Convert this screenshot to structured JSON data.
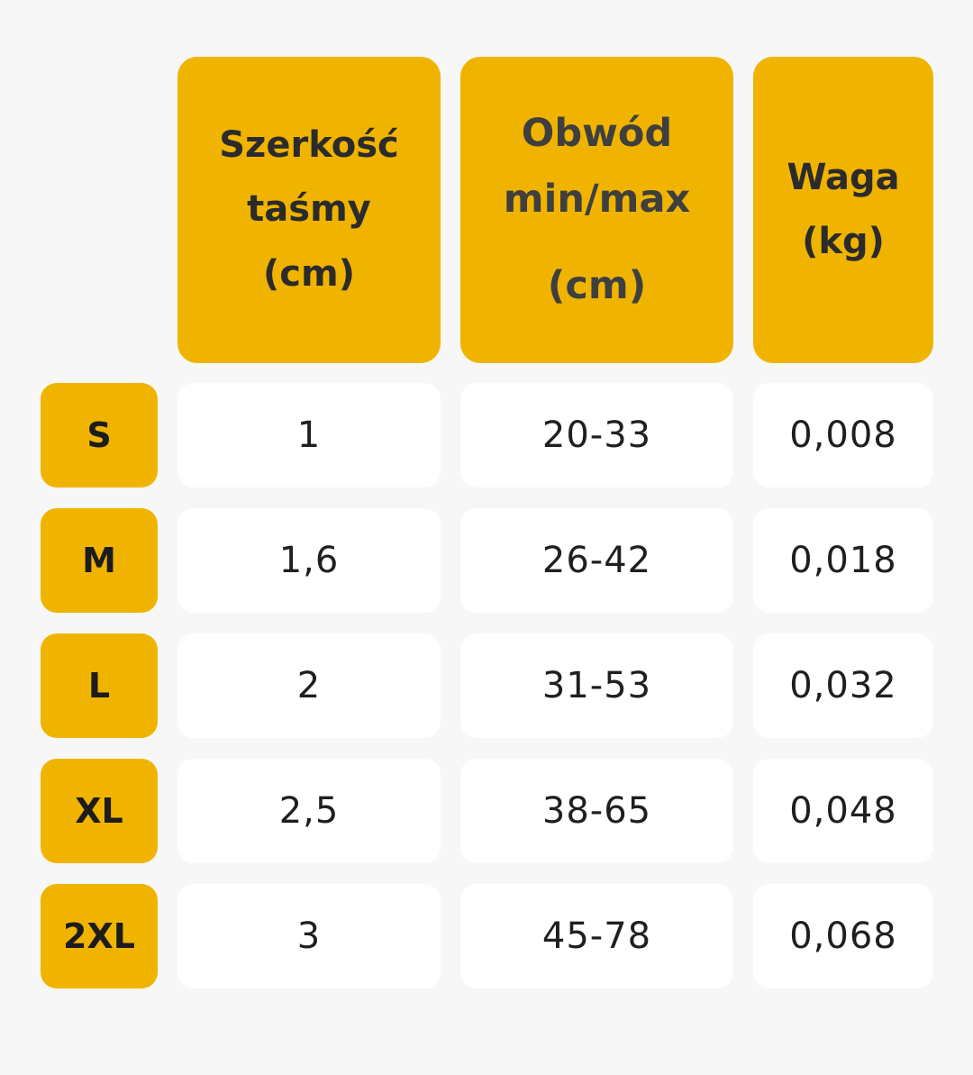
{
  "colors": {
    "background": "#f7f7f7",
    "header_fill": "#f0b400",
    "value_fill": "#ffffff",
    "text": "#1f1f1f"
  },
  "headers": {
    "width": [
      "Szerkość",
      "taśmy",
      "(cm)"
    ],
    "circumference": [
      "Obwód",
      "min/max",
      "(cm)"
    ],
    "weight": [
      "Waga",
      "(kg)"
    ]
  },
  "rows": [
    {
      "size": "S",
      "width": "1",
      "circumference": "20-33",
      "weight": "0,008"
    },
    {
      "size": "M",
      "width": "1,6",
      "circumference": "26-42",
      "weight": "0,018"
    },
    {
      "size": "L",
      "width": "2",
      "circumference": "31-53",
      "weight": "0,032"
    },
    {
      "size": "XL",
      "width": "2,5",
      "circumference": "38-65",
      "weight": "0,048"
    },
    {
      "size": "2XL",
      "width": "3",
      "circumference": "45-78",
      "weight": "0,068"
    }
  ]
}
